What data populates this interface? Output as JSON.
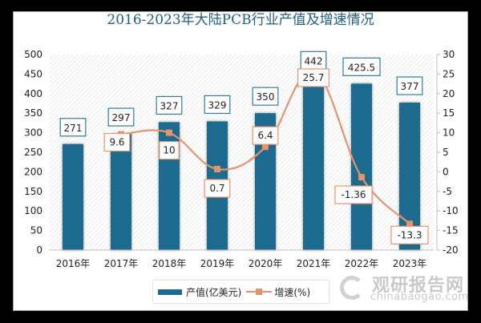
{
  "title": "2016-2023年大陆PCB行业产值及增速情况",
  "chart_data": {
    "type": "bar+line",
    "title": "2016-2023年大陆PCB行业产值及增速情况",
    "categories": [
      "2016年",
      "2017年",
      "2018年",
      "2019年",
      "2020年",
      "2021年",
      "2022年",
      "2023年"
    ],
    "series": [
      {
        "name": "产值(亿美元)",
        "type": "bar",
        "axis": "left",
        "color": "#1f6b8e",
        "values": [
          271,
          297,
          327,
          329,
          350,
          442,
          425.5,
          377
        ]
      },
      {
        "name": "增速(%)",
        "type": "line",
        "axis": "right",
        "color": "#e8926a",
        "values": [
          null,
          9.6,
          10,
          0.7,
          6.4,
          25.7,
          -1.36,
          -13.3
        ]
      }
    ],
    "left_axis": {
      "ylim": [
        0,
        500
      ],
      "ticks": [
        "0",
        "50",
        "100",
        "150",
        "200",
        "250",
        "300",
        "350",
        "400",
        "450",
        "500"
      ]
    },
    "right_axis": {
      "ylim": [
        -20,
        30
      ],
      "ticks": [
        "-20",
        "-15",
        "-10",
        "-5",
        "0",
        "5",
        "10",
        "15",
        "20",
        "25",
        "30"
      ]
    },
    "legend_position": "bottom",
    "grid": false
  },
  "bar_labels": [
    "271",
    "297",
    "327",
    "329",
    "350",
    "442",
    "425.5",
    "377"
  ],
  "line_labels": [
    "",
    "9.6",
    "10",
    "0.7",
    "6.4",
    "25.7",
    "-1.36",
    "-13.3"
  ],
  "legend": {
    "bar_label": "产值(亿美元)",
    "line_label": "增速(%)"
  },
  "watermark": {
    "cn": "观研报告网",
    "en": "chinabaogao.com"
  }
}
